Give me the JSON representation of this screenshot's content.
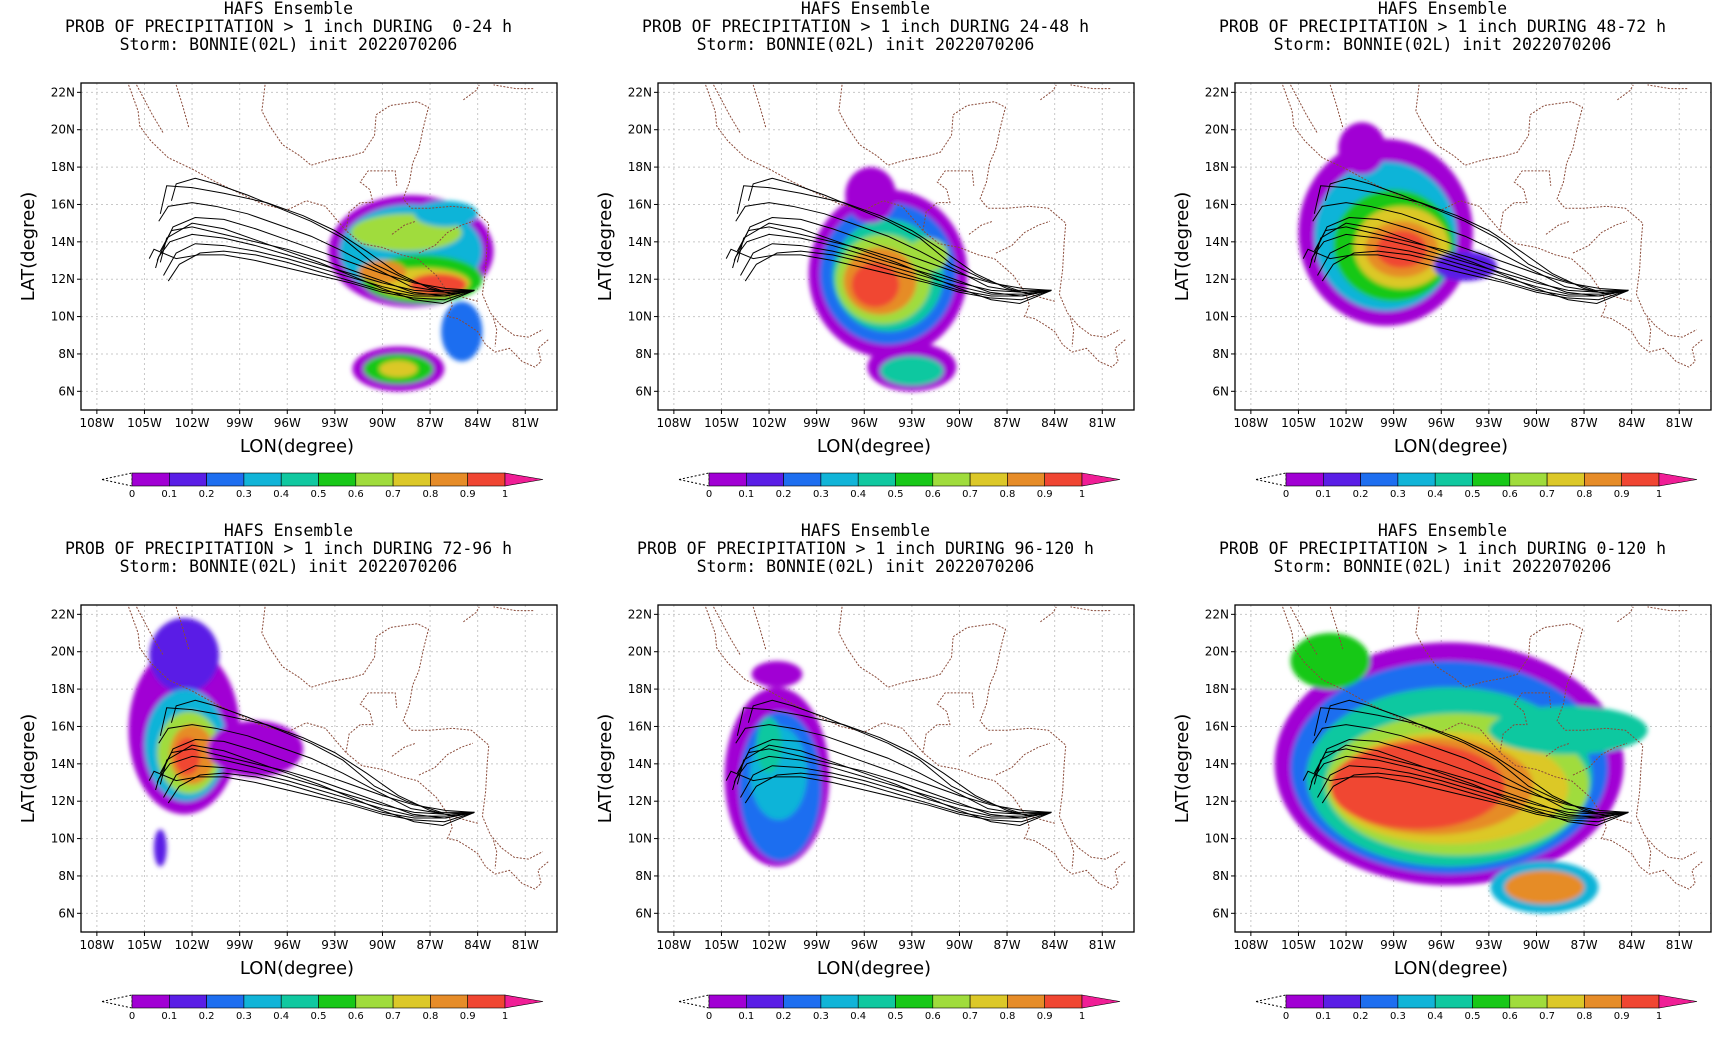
{
  "panels": [
    {
      "title1": "HAFS Ensemble",
      "title2": "PROB OF PRECIPITATION > 1 inch DURING  0-24 h",
      "title3": "Storm: BONNIE(02L) init 2022070206",
      "period": "0-24"
    },
    {
      "title1": "HAFS Ensemble",
      "title2": "PROB OF PRECIPITATION > 1 inch DURING 24-48 h",
      "title3": "Storm: BONNIE(02L) init 2022070206",
      "period": "24-48"
    },
    {
      "title1": "HAFS Ensemble",
      "title2": "PROB OF PRECIPITATION > 1 inch DURING 48-72 h",
      "title3": "Storm: BONNIE(02L) init 2022070206",
      "period": "48-72"
    },
    {
      "title1": "HAFS Ensemble",
      "title2": "PROB OF PRECIPITATION > 1 inch DURING 72-96 h",
      "title3": "Storm: BONNIE(02L) init 2022070206",
      "period": "72-96"
    },
    {
      "title1": "HAFS Ensemble",
      "title2": "PROB OF PRECIPITATION > 1 inch DURING 96-120 h",
      "title3": "Storm: BONNIE(02L) init 2022070206",
      "period": "96-120"
    },
    {
      "title1": "HAFS Ensemble",
      "title2": "PROB OF PRECIPITATION > 1 inch DURING 0-120 h",
      "title3": "Storm: BONNIE(02L) init 2022070206",
      "period": "0-120"
    }
  ],
  "axes": {
    "xlabel": "LON(degree)",
    "ylabel": "LAT(degree)",
    "lon_ticks": [
      "108W",
      "105W",
      "102W",
      "99W",
      "96W",
      "93W",
      "90W",
      "87W",
      "84W",
      "81W"
    ],
    "lat_ticks": [
      "22N",
      "20N",
      "18N",
      "16N",
      "14N",
      "12N",
      "10N",
      "8N",
      "6N"
    ]
  },
  "colorbar": {
    "labels": [
      "0",
      "0.1",
      "0.2",
      "0.3",
      "0.4",
      "0.5",
      "0.6",
      "0.7",
      "0.8",
      "0.9",
      "1"
    ],
    "colors": [
      "#a100d4",
      "#5a1ee6",
      "#1e6ef0",
      "#11b4d8",
      "#10c8a0",
      "#18c818",
      "#a0dc3c",
      "#dcc828",
      "#e68c28",
      "#f04632"
    ],
    "overflow_color": "#f01e96"
  },
  "chart_data": {
    "type": "heatmap",
    "variable": "PROB OF PRECIPITATION > 1 inch",
    "storm": "BONNIE(02L)",
    "init": "2022070206",
    "xlim": [
      -109,
      -79
    ],
    "ylim": [
      5,
      22.5
    ],
    "periods": [
      "0-24 h",
      "24-48 h",
      "48-72 h",
      "72-96 h",
      "96-120 h",
      "0-120 h"
    ],
    "grid": true
  }
}
